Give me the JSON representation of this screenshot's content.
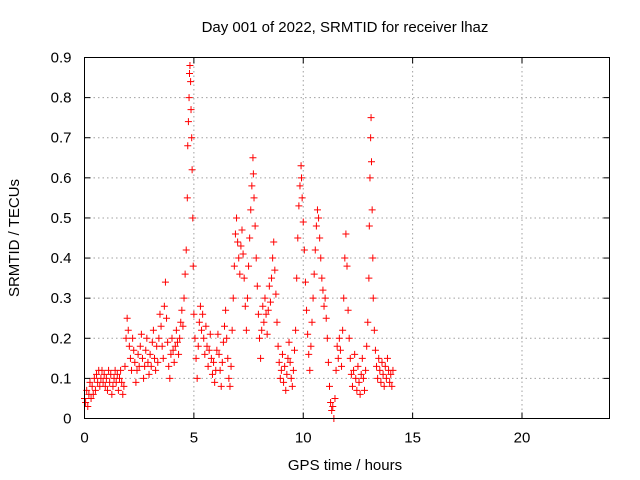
{
  "chart_data": {
    "type": "scatter",
    "title": "Day 001 of 2022, SRMTID for receiver lhaz",
    "xlabel": "GPS time / hours",
    "ylabel": "SRMTID / TECUs",
    "xlim": [
      0,
      24
    ],
    "ylim": [
      0,
      0.9
    ],
    "x_ticks": [
      "0",
      "5",
      "10",
      "15",
      "20"
    ],
    "x_tick_values": [
      0,
      5,
      10,
      15,
      20
    ],
    "y_ticks": [
      "0",
      "0.1",
      "0.2",
      "0.3",
      "0.4",
      "0.5",
      "0.6",
      "0.7",
      "0.8",
      "0.9"
    ],
    "y_tick_values": [
      0,
      0.1,
      0.2,
      0.3,
      0.4,
      0.5,
      0.6,
      0.7,
      0.8,
      0.9
    ],
    "grid": true,
    "marker": "plus",
    "series": [
      {
        "name": "SRMTID",
        "color": "#ff0000",
        "points": [
          [
            0.0,
            0.05
          ],
          [
            0.05,
            0.04
          ],
          [
            0.1,
            0.07
          ],
          [
            0.15,
            0.03
          ],
          [
            0.2,
            0.06
          ],
          [
            0.25,
            0.09
          ],
          [
            0.3,
            0.05
          ],
          [
            0.35,
            0.08
          ],
          [
            0.4,
            0.06
          ],
          [
            0.45,
            0.1
          ],
          [
            0.5,
            0.07
          ],
          [
            0.55,
            0.11
          ],
          [
            0.6,
            0.09
          ],
          [
            0.65,
            0.12
          ],
          [
            0.7,
            0.08
          ],
          [
            0.75,
            0.1
          ],
          [
            0.8,
            0.12
          ],
          [
            0.85,
            0.09
          ],
          [
            0.9,
            0.11
          ],
          [
            0.95,
            0.08
          ],
          [
            1.0,
            0.1
          ],
          [
            1.05,
            0.07
          ],
          [
            1.1,
            0.12
          ],
          [
            1.15,
            0.09
          ],
          [
            1.2,
            0.11
          ],
          [
            1.25,
            0.06
          ],
          [
            1.3,
            0.08
          ],
          [
            1.35,
            0.1
          ],
          [
            1.4,
            0.12
          ],
          [
            1.45,
            0.09
          ],
          [
            1.5,
            0.11
          ],
          [
            1.55,
            0.07
          ],
          [
            1.6,
            0.1
          ],
          [
            1.65,
            0.12
          ],
          [
            1.7,
            0.09
          ],
          [
            1.75,
            0.06
          ],
          [
            1.8,
            0.08
          ],
          [
            1.85,
            0.13
          ],
          [
            1.9,
            0.2
          ],
          [
            1.95,
            0.25
          ],
          [
            2.0,
            0.22
          ],
          [
            2.05,
            0.18
          ],
          [
            2.1,
            0.15
          ],
          [
            2.15,
            0.12
          ],
          [
            2.2,
            0.2
          ],
          [
            2.25,
            0.17
          ],
          [
            2.3,
            0.14
          ],
          [
            2.35,
            0.09
          ],
          [
            2.4,
            0.12
          ],
          [
            2.45,
            0.16
          ],
          [
            2.5,
            0.13
          ],
          [
            2.55,
            0.18
          ],
          [
            2.6,
            0.21
          ],
          [
            2.65,
            0.15
          ],
          [
            2.7,
            0.1
          ],
          [
            2.75,
            0.13
          ],
          [
            2.8,
            0.17
          ],
          [
            2.85,
            0.2
          ],
          [
            2.9,
            0.14
          ],
          [
            2.95,
            0.11
          ],
          [
            3.0,
            0.16
          ],
          [
            3.05,
            0.13
          ],
          [
            3.1,
            0.19
          ],
          [
            3.15,
            0.22
          ],
          [
            3.2,
            0.15
          ],
          [
            3.25,
            0.12
          ],
          [
            3.3,
            0.18
          ],
          [
            3.35,
            0.14
          ],
          [
            3.4,
            0.2
          ],
          [
            3.45,
            0.26
          ],
          [
            3.5,
            0.23
          ],
          [
            3.55,
            0.18
          ],
          [
            3.6,
            0.15
          ],
          [
            3.65,
            0.28
          ],
          [
            3.7,
            0.34
          ],
          [
            3.75,
            0.25
          ],
          [
            3.8,
            0.19
          ],
          [
            3.85,
            0.13
          ],
          [
            3.9,
            0.1
          ],
          [
            3.95,
            0.16
          ],
          [
            4.0,
            0.2
          ],
          [
            4.05,
            0.17
          ],
          [
            4.1,
            0.14
          ],
          [
            4.15,
            0.18
          ],
          [
            4.2,
            0.22
          ],
          [
            4.25,
            0.19
          ],
          [
            4.3,
            0.16
          ],
          [
            4.35,
            0.2
          ],
          [
            4.4,
            0.24
          ],
          [
            4.45,
            0.27
          ],
          [
            4.5,
            0.23
          ],
          [
            4.55,
            0.3
          ],
          [
            4.6,
            0.36
          ],
          [
            4.65,
            0.42
          ],
          [
            4.7,
            0.55
          ],
          [
            4.72,
            0.68
          ],
          [
            4.75,
            0.74
          ],
          [
            4.78,
            0.8
          ],
          [
            4.8,
            0.86
          ],
          [
            4.82,
            0.88
          ],
          [
            4.85,
            0.84
          ],
          [
            4.87,
            0.77
          ],
          [
            4.9,
            0.7
          ],
          [
            4.92,
            0.62
          ],
          [
            4.95,
            0.5
          ],
          [
            4.97,
            0.38
          ],
          [
            5.0,
            0.26
          ],
          [
            5.05,
            0.2
          ],
          [
            5.1,
            0.15
          ],
          [
            5.15,
            0.1
          ],
          [
            5.2,
            0.18
          ],
          [
            5.25,
            0.24
          ],
          [
            5.3,
            0.28
          ],
          [
            5.35,
            0.22
          ],
          [
            5.4,
            0.26
          ],
          [
            5.45,
            0.2
          ],
          [
            5.5,
            0.16
          ],
          [
            5.55,
            0.23
          ],
          [
            5.6,
            0.18
          ],
          [
            5.65,
            0.13
          ],
          [
            5.7,
            0.17
          ],
          [
            5.75,
            0.21
          ],
          [
            5.8,
            0.15
          ],
          [
            5.85,
            0.11
          ],
          [
            5.9,
            0.14
          ],
          [
            5.95,
            0.09
          ],
          [
            6.0,
            0.12
          ],
          [
            6.05,
            0.17
          ],
          [
            6.1,
            0.21
          ],
          [
            6.15,
            0.16
          ],
          [
            6.2,
            0.12
          ],
          [
            6.25,
            0.08
          ],
          [
            6.3,
            0.14
          ],
          [
            6.35,
            0.19
          ],
          [
            6.4,
            0.23
          ],
          [
            6.45,
            0.27
          ],
          [
            6.5,
            0.2
          ],
          [
            6.55,
            0.15
          ],
          [
            6.6,
            0.1
          ],
          [
            6.65,
            0.08
          ],
          [
            6.7,
            0.13
          ],
          [
            6.75,
            0.22
          ],
          [
            6.8,
            0.3
          ],
          [
            6.85,
            0.38
          ],
          [
            6.9,
            0.46
          ],
          [
            6.95,
            0.5
          ],
          [
            7.0,
            0.44
          ],
          [
            7.05,
            0.4
          ],
          [
            7.1,
            0.36
          ],
          [
            7.15,
            0.43
          ],
          [
            7.2,
            0.47
          ],
          [
            7.25,
            0.41
          ],
          [
            7.3,
            0.35
          ],
          [
            7.35,
            0.28
          ],
          [
            7.4,
            0.22
          ],
          [
            7.45,
            0.3
          ],
          [
            7.5,
            0.38
          ],
          [
            7.55,
            0.45
          ],
          [
            7.6,
            0.52
          ],
          [
            7.65,
            0.58
          ],
          [
            7.7,
            0.65
          ],
          [
            7.72,
            0.61
          ],
          [
            7.75,
            0.55
          ],
          [
            7.8,
            0.48
          ],
          [
            7.85,
            0.4
          ],
          [
            7.9,
            0.33
          ],
          [
            7.95,
            0.26
          ],
          [
            8.0,
            0.2
          ],
          [
            8.05,
            0.15
          ],
          [
            8.1,
            0.22
          ],
          [
            8.15,
            0.28
          ],
          [
            8.2,
            0.24
          ],
          [
            8.25,
            0.3
          ],
          [
            8.3,
            0.26
          ],
          [
            8.35,
            0.21
          ],
          [
            8.4,
            0.27
          ],
          [
            8.45,
            0.33
          ],
          [
            8.5,
            0.29
          ],
          [
            8.55,
            0.35
          ],
          [
            8.6,
            0.4
          ],
          [
            8.65,
            0.44
          ],
          [
            8.7,
            0.37
          ],
          [
            8.75,
            0.31
          ],
          [
            8.8,
            0.24
          ],
          [
            8.85,
            0.18
          ],
          [
            8.9,
            0.14
          ],
          [
            8.95,
            0.1
          ],
          [
            9.0,
            0.12
          ],
          [
            9.05,
            0.16
          ],
          [
            9.1,
            0.09
          ],
          [
            9.15,
            0.13
          ],
          [
            9.2,
            0.07
          ],
          [
            9.25,
            0.11
          ],
          [
            9.3,
            0.15
          ],
          [
            9.35,
            0.19
          ],
          [
            9.4,
            0.14
          ],
          [
            9.45,
            0.1
          ],
          [
            9.5,
            0.08
          ],
          [
            9.55,
            0.12
          ],
          [
            9.6,
            0.17
          ],
          [
            9.65,
            0.22
          ],
          [
            9.7,
            0.35
          ],
          [
            9.75,
            0.45
          ],
          [
            9.8,
            0.53
          ],
          [
            9.85,
            0.58
          ],
          [
            9.9,
            0.63
          ],
          [
            9.92,
            0.6
          ],
          [
            9.95,
            0.55
          ],
          [
            10.0,
            0.49
          ],
          [
            10.05,
            0.42
          ],
          [
            10.1,
            0.34
          ],
          [
            10.15,
            0.27
          ],
          [
            10.2,
            0.21
          ],
          [
            10.25,
            0.16
          ],
          [
            10.3,
            0.12
          ],
          [
            10.35,
            0.18
          ],
          [
            10.4,
            0.24
          ],
          [
            10.45,
            0.3
          ],
          [
            10.5,
            0.36
          ],
          [
            10.55,
            0.42
          ],
          [
            10.6,
            0.48
          ],
          [
            10.65,
            0.52
          ],
          [
            10.7,
            0.5
          ],
          [
            10.75,
            0.45
          ],
          [
            10.8,
            0.4
          ],
          [
            10.85,
            0.35
          ],
          [
            10.9,
            0.32
          ],
          [
            10.95,
            0.28
          ],
          [
            11.0,
            0.3
          ],
          [
            11.05,
            0.25
          ],
          [
            11.1,
            0.2
          ],
          [
            11.15,
            0.14
          ],
          [
            11.2,
            0.08
          ],
          [
            11.25,
            0.04
          ],
          [
            11.3,
            0.02
          ],
          [
            11.35,
            0.03
          ],
          [
            11.4,
            0.0
          ],
          [
            11.45,
            0.05
          ],
          [
            11.5,
            0.12
          ],
          [
            11.55,
            0.18
          ],
          [
            11.6,
            0.15
          ],
          [
            11.65,
            0.2
          ],
          [
            11.7,
            0.17
          ],
          [
            11.75,
            0.13
          ],
          [
            11.8,
            0.22
          ],
          [
            11.85,
            0.3
          ],
          [
            11.9,
            0.4
          ],
          [
            11.95,
            0.46
          ],
          [
            12.0,
            0.38
          ],
          [
            12.05,
            0.27
          ],
          [
            12.1,
            0.2
          ],
          [
            12.15,
            0.15
          ],
          [
            12.2,
            0.11
          ],
          [
            12.25,
            0.08
          ],
          [
            12.3,
            0.12
          ],
          [
            12.35,
            0.16
          ],
          [
            12.4,
            0.1
          ],
          [
            12.45,
            0.07
          ],
          [
            12.5,
            0.13
          ],
          [
            12.55,
            0.09
          ],
          [
            12.6,
            0.06
          ],
          [
            12.65,
            0.11
          ],
          [
            12.7,
            0.15
          ],
          [
            12.75,
            0.1
          ],
          [
            12.8,
            0.07
          ],
          [
            12.85,
            0.12
          ],
          [
            12.9,
            0.18
          ],
          [
            12.95,
            0.24
          ],
          [
            13.0,
            0.35
          ],
          [
            13.02,
            0.48
          ],
          [
            13.05,
            0.6
          ],
          [
            13.08,
            0.7
          ],
          [
            13.1,
            0.75
          ],
          [
            13.12,
            0.64
          ],
          [
            13.15,
            0.52
          ],
          [
            13.18,
            0.4
          ],
          [
            13.2,
            0.3
          ],
          [
            13.25,
            0.22
          ],
          [
            13.3,
            0.17
          ],
          [
            13.35,
            0.13
          ],
          [
            13.4,
            0.1
          ],
          [
            13.45,
            0.15
          ],
          [
            13.5,
            0.12
          ],
          [
            13.55,
            0.09
          ],
          [
            13.6,
            0.14
          ],
          [
            13.65,
            0.11
          ],
          [
            13.7,
            0.08
          ],
          [
            13.75,
            0.13
          ],
          [
            13.8,
            0.1
          ],
          [
            13.85,
            0.15
          ],
          [
            13.9,
            0.12
          ],
          [
            13.95,
            0.09
          ],
          [
            14.0,
            0.11
          ],
          [
            14.05,
            0.08
          ],
          [
            14.1,
            0.12
          ]
        ]
      }
    ]
  }
}
